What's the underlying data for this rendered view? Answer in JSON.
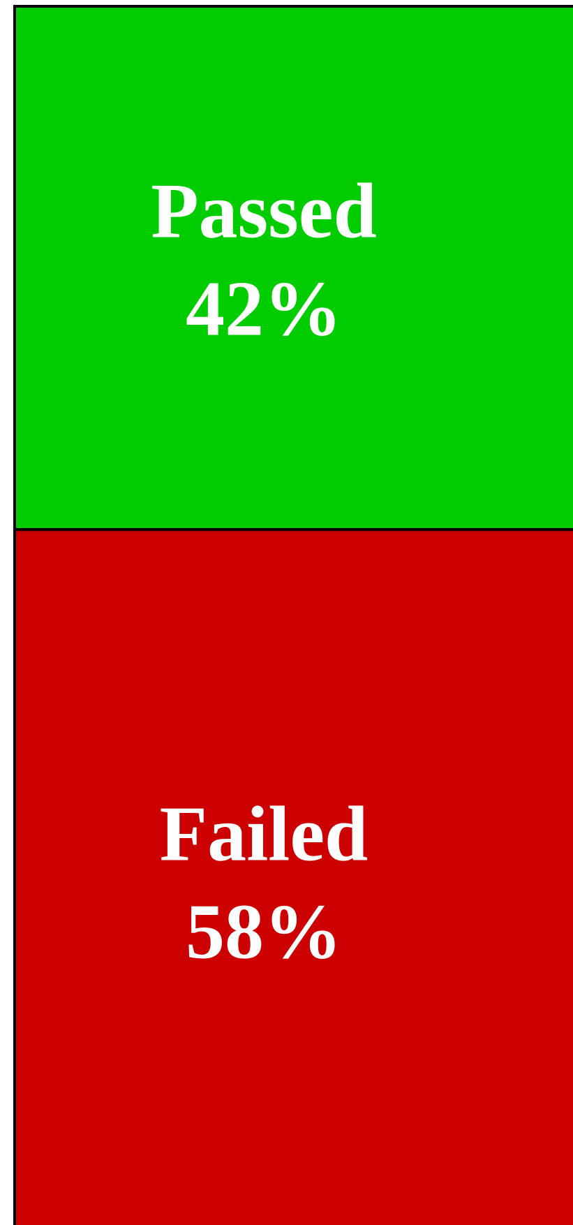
{
  "chart_data": {
    "type": "treemap",
    "categories": [
      "Passed",
      "Failed"
    ],
    "values": [
      42,
      58
    ],
    "value_labels": [
      "42%",
      "58%"
    ],
    "colors": [
      "#00cc00",
      "#cc0000"
    ]
  }
}
